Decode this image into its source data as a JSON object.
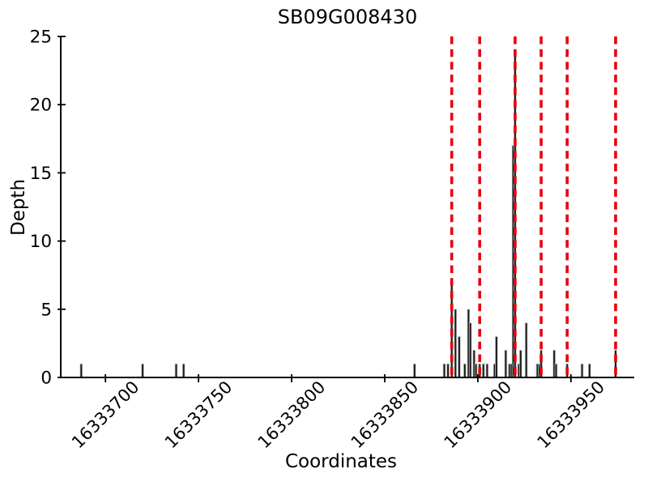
{
  "chart_data": {
    "type": "bar",
    "title": "SB09G008430",
    "xlabel": "Coordinates",
    "ylabel": "Depth",
    "xlim": [
      16333676,
      16333984
    ],
    "ylim": [
      0,
      25
    ],
    "x_ticks": [
      16333700,
      16333750,
      16333800,
      16333850,
      16333900,
      16333950
    ],
    "y_ticks": [
      0,
      5,
      10,
      15,
      20,
      25
    ],
    "grid": false,
    "legend": "none",
    "axis_color": "#000000",
    "bar_color": "#1a1a1a",
    "bar_edge_color": "#c8c8c8",
    "marker_color": "#e8000b",
    "bars": [
      {
        "x": 16333687,
        "depth": 1
      },
      {
        "x": 16333720,
        "depth": 1
      },
      {
        "x": 16333738,
        "depth": 1
      },
      {
        "x": 16333742,
        "depth": 1
      },
      {
        "x": 16333866,
        "depth": 1
      },
      {
        "x": 16333882,
        "depth": 1
      },
      {
        "x": 16333884,
        "depth": 1
      },
      {
        "x": 16333886,
        "depth": 7
      },
      {
        "x": 16333888,
        "depth": 5
      },
      {
        "x": 16333890,
        "depth": 3
      },
      {
        "x": 16333893,
        "depth": 1
      },
      {
        "x": 16333895,
        "depth": 5
      },
      {
        "x": 16333896,
        "depth": 4
      },
      {
        "x": 16333898,
        "depth": 2
      },
      {
        "x": 16333899,
        "depth": 1
      },
      {
        "x": 16333901,
        "depth": 1
      },
      {
        "x": 16333903,
        "depth": 1
      },
      {
        "x": 16333905,
        "depth": 1
      },
      {
        "x": 16333909,
        "depth": 1
      },
      {
        "x": 16333910,
        "depth": 3
      },
      {
        "x": 16333915,
        "depth": 2
      },
      {
        "x": 16333917,
        "depth": 1
      },
      {
        "x": 16333918,
        "depth": 1
      },
      {
        "x": 16333919,
        "depth": 17
      },
      {
        "x": 16333920,
        "depth": 24
      },
      {
        "x": 16333922,
        "depth": 1
      },
      {
        "x": 16333923,
        "depth": 2
      },
      {
        "x": 16333926,
        "depth": 4
      },
      {
        "x": 16333932,
        "depth": 1
      },
      {
        "x": 16333933,
        "depth": 1
      },
      {
        "x": 16333934,
        "depth": 2
      },
      {
        "x": 16333941,
        "depth": 2
      },
      {
        "x": 16333942,
        "depth": 1
      },
      {
        "x": 16333948,
        "depth": 1
      },
      {
        "x": 16333956,
        "depth": 1
      },
      {
        "x": 16333960,
        "depth": 1
      },
      {
        "x": 16333974,
        "depth": 2
      }
    ],
    "markers": [
      16333886,
      16333901,
      16333920,
      16333934,
      16333948,
      16333974
    ]
  }
}
